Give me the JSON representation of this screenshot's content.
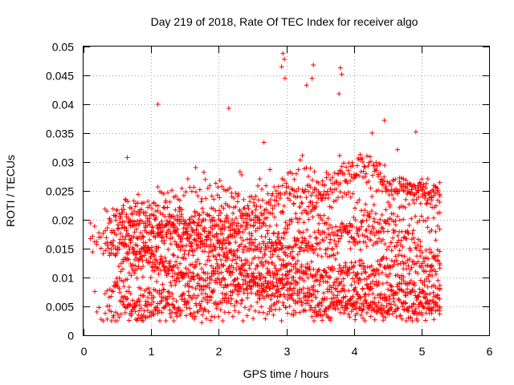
{
  "chart_data": {
    "type": "scatter",
    "title": "Day 219 of 2018, Rate Of TEC Index for receiver algo",
    "xlabel": "GPS time / hours",
    "ylabel": "ROTI / TECUs",
    "xlim": [
      0,
      6
    ],
    "ylim": [
      0,
      0.05
    ],
    "xticks": [
      0,
      1,
      2,
      3,
      4,
      5,
      6
    ],
    "xtick_labels": [
      "0",
      "1",
      "2",
      "3",
      "4",
      "5",
      "6"
    ],
    "yticks": [
      0,
      0.005,
      0.01,
      0.015,
      0.02,
      0.025,
      0.03,
      0.035,
      0.04,
      0.045,
      0.05
    ],
    "ytick_labels": [
      "0",
      "0.005",
      "0.01",
      "0.015",
      "0.02",
      "0.025",
      "0.03",
      "0.035",
      "0.04",
      "0.045",
      "0.05"
    ],
    "grid": true,
    "marker": "+",
    "color": "#ff0000",
    "series": [
      {
        "name": "ROTI",
        "x_range": [
          0.0,
          5.3
        ],
        "n_points": 3000,
        "notable_points": [
          {
            "x": 1.1,
            "y": 0.04
          },
          {
            "x": 2.15,
            "y": 0.0393
          },
          {
            "x": 2.95,
            "y": 0.0488
          },
          {
            "x": 2.97,
            "y": 0.0478
          },
          {
            "x": 2.93,
            "y": 0.0465
          },
          {
            "x": 2.98,
            "y": 0.0445
          },
          {
            "x": 3.4,
            "y": 0.0468
          },
          {
            "x": 3.38,
            "y": 0.0445
          },
          {
            "x": 3.8,
            "y": 0.0463
          },
          {
            "x": 3.82,
            "y": 0.0452
          },
          {
            "x": 3.78,
            "y": 0.0418
          },
          {
            "x": 4.45,
            "y": 0.0372
          },
          {
            "x": 3.3,
            "y": 0.0433
          },
          {
            "x": 1.75,
            "y": 0.0022
          },
          {
            "x": 0.35,
            "y": 0.0028
          }
        ]
      }
    ]
  }
}
